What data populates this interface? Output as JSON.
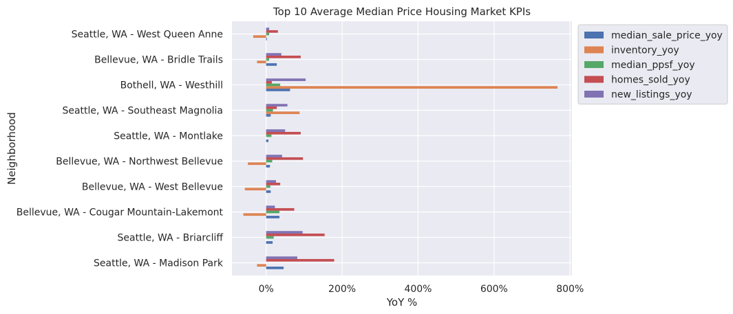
{
  "chart_data": {
    "type": "bar",
    "orientation": "horizontal",
    "title": "Top 10 Average Median Price Housing Market KPIs",
    "xlabel": "YoY %",
    "ylabel": "Neighborhood",
    "xlim": [
      -0.9,
      8.05
    ],
    "xticks": [
      0,
      2,
      4,
      6,
      8
    ],
    "xtick_labels": [
      "0%",
      "200%",
      "400%",
      "600%",
      "800%"
    ],
    "grid": true,
    "legend_position": "outside-top-right",
    "categories": [
      "Seattle, WA - West Queen Anne",
      "Bellevue, WA - Bridle Trails",
      "Bothell, WA - Westhill",
      "Seattle, WA - Southeast Magnolia",
      "Seattle, WA - Montlake",
      "Bellevue, WA - Northwest Bellevue",
      "Bellevue, WA - West Bellevue",
      "Bellevue, WA - Cougar Mountain-Lakemont",
      "Seattle, WA - Briarcliff",
      "Seattle, WA - Madison Park"
    ],
    "series": [
      {
        "name": "median_sale_price_yoy",
        "color": "#4c72b0",
        "values": [
          0.02,
          0.28,
          0.63,
          0.12,
          0.06,
          0.1,
          0.12,
          0.35,
          0.17,
          0.46
        ]
      },
      {
        "name": "inventory_yoy",
        "color": "#dd8452",
        "values": [
          -0.34,
          -0.24,
          7.67,
          0.88,
          0.0,
          -0.48,
          -0.56,
          -0.6,
          0.0,
          -0.24
        ]
      },
      {
        "name": "median_ppsf_yoy",
        "color": "#55a868",
        "values": [
          0.08,
          0.08,
          0.37,
          0.18,
          0.14,
          0.16,
          0.11,
          0.35,
          0.2,
          0.0
        ]
      },
      {
        "name": "homes_sold_yoy",
        "color": "#c44e52",
        "values": [
          0.31,
          0.91,
          0.15,
          0.28,
          0.91,
          0.97,
          0.37,
          0.74,
          1.54,
          1.79
        ]
      },
      {
        "name": "new_listings_yoy",
        "color": "#8172b3",
        "values": [
          0.08,
          0.4,
          1.04,
          0.56,
          0.5,
          0.42,
          0.26,
          0.23,
          0.96,
          0.82
        ]
      }
    ]
  }
}
